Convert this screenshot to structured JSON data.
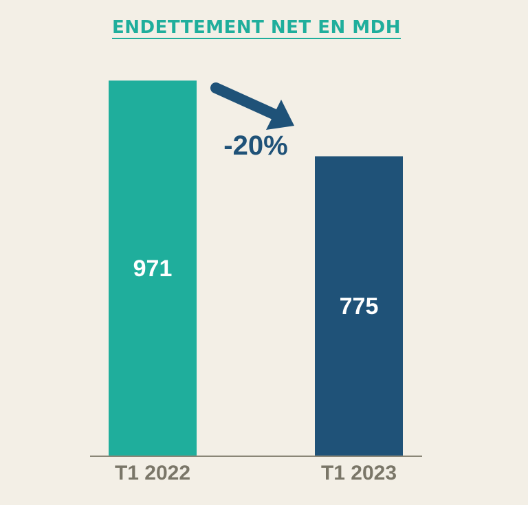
{
  "chart_data": {
    "type": "bar",
    "title": "ENDETTEMENT NET EN MDH",
    "categories": [
      "T1 2022",
      "T1 2023"
    ],
    "values": [
      971,
      775
    ],
    "value_labels": [
      "971",
      "775"
    ],
    "bar_colors": [
      "#1fae9c",
      "#1f5278"
    ],
    "ylim": [
      0,
      1000
    ],
    "grid": false,
    "legend": "none",
    "annotation": {
      "text": "-20%",
      "color": "#1f5278",
      "icon": "arrow-down-right-icon"
    }
  },
  "colors": {
    "background": "#f3efe6",
    "title": "#1fae9c",
    "axis": "#8a8677",
    "tick_text": "#7a7668"
  }
}
